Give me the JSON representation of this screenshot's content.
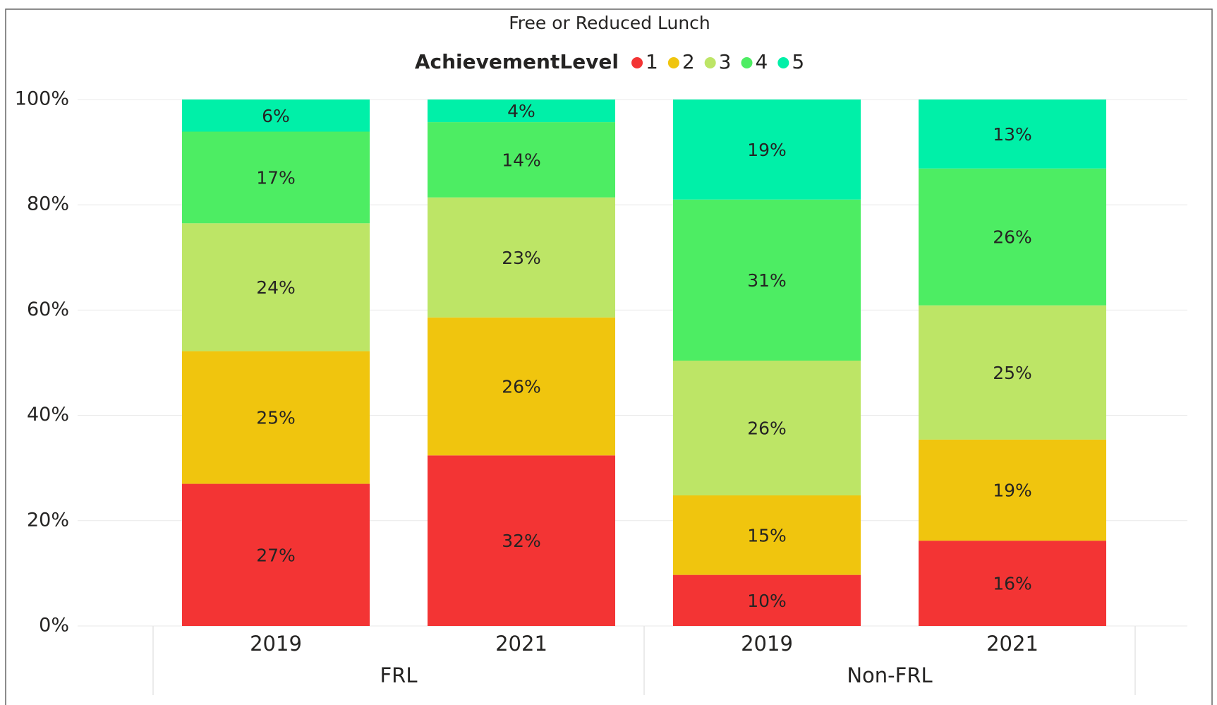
{
  "chart_data": {
    "type": "stacked_bar_100",
    "title": "Free or Reduced Lunch",
    "legend_title": "AchievementLevel",
    "legend_position": "top",
    "categories": [
      "2019",
      "2021",
      "2019",
      "2021"
    ],
    "groups": [
      "FRL",
      "Non-FRL"
    ],
    "series": [
      {
        "name": "1",
        "color": "#f33434",
        "values": [
          27.0,
          32.4,
          9.7,
          16.2
        ],
        "value_labels": [
          "27%",
          "32%",
          "10%",
          "16%"
        ]
      },
      {
        "name": "2",
        "color": "#f0c50e",
        "values": [
          25.2,
          26.2,
          15.1,
          19.2
        ],
        "value_labels": [
          "25%",
          "26%",
          "15%",
          "19%"
        ]
      },
      {
        "name": "3",
        "color": "#bde566",
        "values": [
          24.3,
          22.8,
          25.6,
          25.5
        ],
        "value_labels": [
          "24%",
          "23%",
          "26%",
          "25%"
        ]
      },
      {
        "name": "4",
        "color": "#4ded63",
        "values": [
          17.4,
          14.3,
          30.6,
          26.0
        ],
        "value_labels": [
          "17%",
          "14%",
          "31%",
          "26%"
        ]
      },
      {
        "name": "5",
        "color": "#00f0a8",
        "values": [
          6.1,
          4.3,
          19.0,
          13.1
        ],
        "value_labels": [
          "6%",
          "4%",
          "19%",
          "13%"
        ]
      }
    ],
    "ylim": [
      0,
      100
    ],
    "yticks": [
      {
        "value": 0,
        "label": "0%"
      },
      {
        "value": 20,
        "label": "20%"
      },
      {
        "value": 40,
        "label": "40%"
      },
      {
        "value": 60,
        "label": "60%"
      },
      {
        "value": 80,
        "label": "80%"
      },
      {
        "value": 100,
        "label": "100%"
      }
    ],
    "grid": true
  }
}
